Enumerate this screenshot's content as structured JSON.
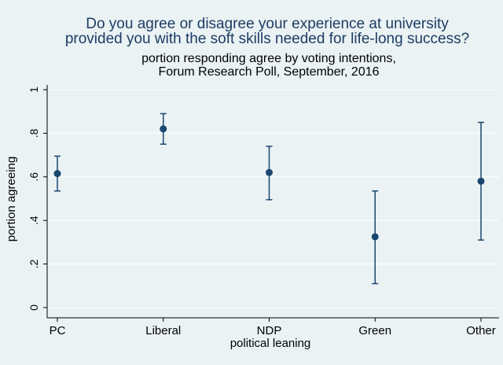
{
  "chart_data": {
    "type": "scatter",
    "title": "Do you agree or disagree your experience at university provided you with the soft skills needed for life-long success?",
    "title_lines": [
      "Do you agree or disagree your experience at university",
      "provided you with the soft skills needed for life-long success?"
    ],
    "subtitle_lines": [
      "portion responding agree by voting intentions,",
      "Forum Research Poll, September, 2016"
    ],
    "xlabel": "political leaning",
    "ylabel": "portion agreeing",
    "categories": [
      "PC",
      "Liberal",
      "NDP",
      "Green",
      "Other"
    ],
    "values": [
      0.615,
      0.82,
      0.62,
      0.325,
      0.58
    ],
    "ci_low": [
      0.535,
      0.75,
      0.495,
      0.11,
      0.31
    ],
    "ci_high": [
      0.695,
      0.89,
      0.74,
      0.535,
      0.85
    ],
    "ylim": [
      0,
      1
    ],
    "yticks": [
      0,
      0.2,
      0.4,
      0.6,
      0.8,
      1
    ],
    "ytick_labels": [
      "0",
      ".2",
      ".4",
      ".6",
      ".8",
      "1"
    ],
    "grid": true,
    "colors": {
      "background": "#eaf2f3",
      "grid": "#ffffff",
      "marker": "#1a476f",
      "axis": "#000000",
      "title": "#1e3c64",
      "text": "#000000"
    }
  }
}
